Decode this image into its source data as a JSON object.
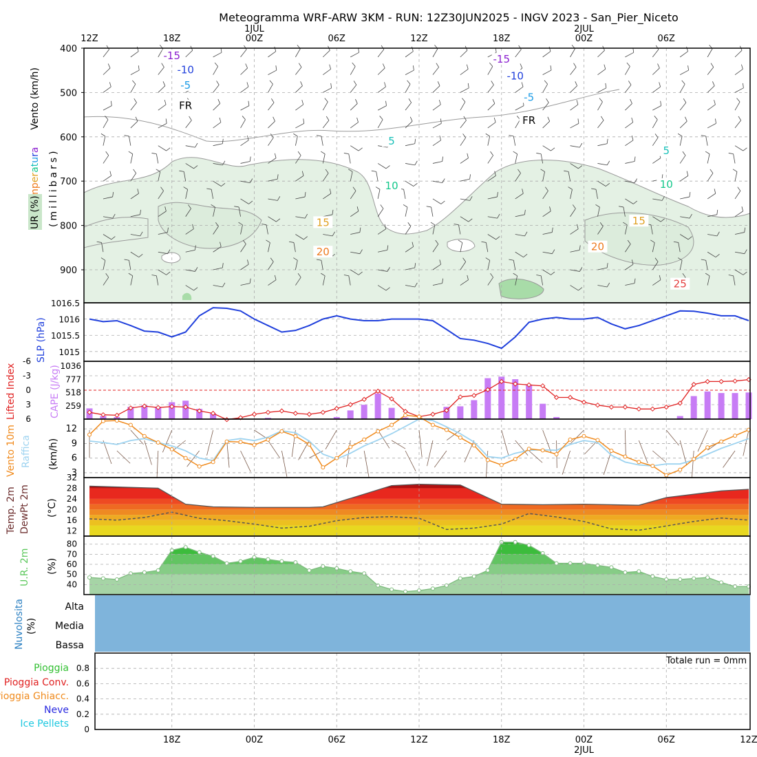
{
  "title": "Meteogramma WRF-ARW 3KM - RUN: 12Z30JUN2025 - INGV 2023 - San_Pier_Niceto",
  "top_time_labels": [
    {
      "label": "12Z",
      "t": 0
    },
    {
      "label": "18Z",
      "t": 6
    },
    {
      "label": "00Z",
      "t": 12,
      "date": "1JUL"
    },
    {
      "label": "06Z",
      "t": 18
    },
    {
      "label": "12Z",
      "t": 24
    },
    {
      "label": "18Z",
      "t": 30
    },
    {
      "label": "00Z",
      "t": 36,
      "date": "2JUL"
    },
    {
      "label": "06Z",
      "t": 42
    }
  ],
  "bottom_time_labels": [
    {
      "label": "18Z",
      "t": 6
    },
    {
      "label": "00Z",
      "t": 12
    },
    {
      "label": "06Z",
      "t": 18
    },
    {
      "label": "12Z",
      "t": 24
    },
    {
      "label": "18Z",
      "t": 30
    },
    {
      "label": "00Z",
      "t": 36,
      "date": "2JUL"
    },
    {
      "label": "06Z",
      "t": 42
    },
    {
      "label": "12Z",
      "t": 48
    }
  ],
  "panel_titles": {
    "wind_label": "Vento (km/h)",
    "temp_label": "Temperatura",
    "ur_label": "UR (%)",
    "pressure_axis": "(millibars)",
    "slp": "SLP (hPa)",
    "lifted": "Lifted Index",
    "cape": "CAPE (J/kg)",
    "wind10": "Vento 10m",
    "gust": "Raffica",
    "wind_units": "(km/h)",
    "temp2m": "Temp. 2m",
    "dew2m": "DewPt 2m",
    "temp_units": "(°C)",
    "rh2m": "U.R. 2m",
    "rh_units": "(%)",
    "cloud": "Nuvolosita",
    "cloud_units": "(%)",
    "cloud_levels": [
      "Alta",
      "Media",
      "Bassa"
    ],
    "precip_legend": [
      "Pioggia",
      "Pioggia Conv.",
      "Pioggia Ghiacc.",
      "Neve",
      "Ice Pellets"
    ],
    "precip_total": "Totale run =  0mm"
  },
  "colors": {
    "accent": "#1f3fdc",
    "cape_bar": "#c77cf5",
    "lifted": "#e02020",
    "wind10": "#f08a1c",
    "gust": "#9dd3f0",
    "rh_fill": "#5cc85c",
    "cloud": "#7fb4db",
    "temp_t15": "#8a1ecf",
    "temp_t10": "#1f3fdc",
    "temp_t5": "#1a9be6",
    "temp_fr": "#000000",
    "temp_p5": "#17c0b8",
    "temp_p10": "#12c78a",
    "temp_p15": "#e0a020",
    "temp_p20": "#ee7a1d",
    "temp_p25": "#e43c3c"
  },
  "chart_data": [
    {
      "type": "line",
      "name": "profile",
      "ylabel": "(millibars)",
      "ylim": [
        400,
        950
      ],
      "yticks": [
        400,
        500,
        600,
        700,
        800,
        900
      ],
      "isotherms": [
        {
          "label": "-15",
          "t": [
            0,
            12,
            24,
            36,
            48
          ],
          "p": [
            416,
            418,
            422,
            428,
            432
          ]
        },
        {
          "label": "-10",
          "t": [
            0,
            12,
            24,
            36,
            48
          ],
          "p": [
            447,
            450,
            455,
            468,
            484
          ]
        },
        {
          "label": "-5",
          "t": [
            0,
            12,
            24,
            36,
            48
          ],
          "p": [
            483,
            485,
            497,
            518,
            532
          ]
        },
        {
          "label": "FR",
          "t": [
            0,
            12,
            24,
            36,
            48
          ],
          "p": [
            530,
            530,
            549,
            570,
            585
          ]
        },
        {
          "label": "5",
          "t": [
            0,
            12,
            24,
            36,
            48
          ],
          "p": [
            600,
            595,
            613,
            620,
            642
          ]
        },
        {
          "label": "10",
          "t": [
            0,
            6,
            12,
            24,
            30,
            36,
            48
          ],
          "p": [
            711,
            720,
            705,
            712,
            715,
            705,
            710
          ]
        },
        {
          "label": "15",
          "t": [
            0,
            12,
            18,
            24,
            30,
            36,
            42,
            48
          ],
          "p": [
            790,
            785,
            795,
            785,
            775,
            790,
            790,
            778
          ]
        },
        {
          "label": "20",
          "t": [
            0,
            6,
            18,
            21,
            24,
            30,
            36,
            42,
            48
          ],
          "p": [
            855,
            837,
            862,
            868,
            846,
            834,
            848,
            850,
            848
          ]
        },
        {
          "label": "25",
          "t": [
            0,
            6,
            12,
            18,
            21,
            24,
            30,
            36,
            42,
            48
          ],
          "p": [
            913,
            930,
            935,
            935,
            920,
            910,
            920,
            935,
            935,
            918
          ]
        }
      ]
    },
    {
      "type": "line",
      "name": "slp",
      "ylabel": "SLP (hPa)",
      "ylim": [
        1014.7,
        1016.5
      ],
      "yticks": [
        1015,
        1015.5,
        1016,
        1016.5
      ],
      "x": [
        0,
        1,
        2,
        3,
        4,
        5,
        6,
        7,
        8,
        9,
        10,
        11,
        12,
        13,
        14,
        15,
        16,
        17,
        18,
        19,
        20,
        21,
        22,
        23,
        24,
        25,
        26,
        27,
        28,
        29,
        30,
        31,
        32,
        33,
        34,
        35,
        36,
        37,
        38,
        39,
        40,
        41,
        42,
        43,
        44,
        45,
        46,
        47,
        48
      ],
      "values": [
        1016,
        1015.92,
        1015.95,
        1015.8,
        1015.63,
        1015.6,
        1015.45,
        1015.6,
        1016.1,
        1016.35,
        1016.33,
        1016.25,
        1016,
        1015.8,
        1015.6,
        1015.65,
        1015.8,
        1016,
        1016.1,
        1016,
        1015.95,
        1015.95,
        1016,
        1016,
        1016,
        1015.95,
        1015.68,
        1015.4,
        1015.35,
        1015.25,
        1015.1,
        1015.45,
        1015.9,
        1016,
        1016.05,
        1016,
        1016,
        1016.05,
        1015.85,
        1015.7,
        1015.8,
        1015.95,
        1016.1,
        1016.25,
        1016.24,
        1016.18,
        1016.1,
        1016.1,
        1015.95
      ]
    },
    {
      "type": "bar",
      "name": "cape_lifted",
      "ylabel": "CAPE (J/kg)",
      "cape_ticks": [
        259,
        518,
        777,
        1036
      ],
      "lifted_ticks": [
        -6,
        -3,
        0,
        3,
        6
      ],
      "cape_max": 1036,
      "x": [
        0,
        1,
        2,
        3,
        4,
        5,
        6,
        7,
        8,
        9,
        10,
        11,
        12,
        13,
        14,
        15,
        16,
        17,
        18,
        19,
        20,
        21,
        22,
        23,
        24,
        25,
        26,
        27,
        28,
        29,
        30,
        31,
        32,
        33,
        34,
        35,
        36,
        37,
        38,
        39,
        40,
        41,
        42,
        43,
        44,
        45,
        46,
        47,
        48
      ],
      "cape": [
        210,
        60,
        40,
        240,
        270,
        240,
        330,
        360,
        200,
        110,
        0,
        0,
        0,
        25,
        0,
        0,
        0,
        0,
        40,
        170,
        280,
        500,
        220,
        30,
        0,
        0,
        240,
        250,
        370,
        800,
        830,
        780,
        670,
        300,
        40,
        0,
        0,
        0,
        0,
        0,
        10,
        0,
        0,
        60,
        450,
        540,
        510,
        510,
        520
      ],
      "lifted": [
        4.6,
        5.1,
        5.2,
        3.7,
        3.3,
        3.6,
        3.4,
        3.5,
        4.3,
        4.8,
        6.1,
        5.7,
        5.0,
        4.6,
        4.3,
        4.8,
        5.0,
        4.6,
        3.8,
        3.0,
        1.9,
        0.2,
        1.8,
        4.4,
        5.5,
        5.0,
        4.2,
        1.4,
        1.1,
        -0.1,
        -1.8,
        -1.3,
        -1.1,
        -0.9,
        1.5,
        1.5,
        2.5,
        3.1,
        3.5,
        3.5,
        3.9,
        3.9,
        3.5,
        2.7,
        -1.2,
        -1.8,
        -1.8,
        -1.9,
        -2.2
      ]
    },
    {
      "type": "line",
      "name": "wind10",
      "ylabel": "(km/h)",
      "ylim": [
        2,
        14
      ],
      "yticks": [
        3,
        6,
        9,
        12
      ],
      "x": [
        0,
        1,
        2,
        3,
        4,
        5,
        6,
        7,
        8,
        9,
        10,
        11,
        12,
        13,
        14,
        15,
        16,
        17,
        18,
        19,
        20,
        21,
        22,
        23,
        24,
        25,
        26,
        27,
        28,
        29,
        30,
        31,
        32,
        33,
        34,
        35,
        36,
        37,
        38,
        39,
        40,
        41,
        42,
        43,
        44,
        45,
        46,
        47,
        48
      ],
      "wind": [
        10.8,
        13.6,
        13.7,
        12.8,
        10.5,
        9.2,
        7.8,
        6.0,
        4.3,
        5.2,
        9.4,
        9.3,
        8.7,
        9.8,
        11.5,
        10.5,
        8.8,
        4.1,
        6.0,
        8.3,
        9.8,
        11.5,
        12.8,
        14.8,
        14.5,
        12.8,
        11.8,
        10.2,
        8.6,
        5.6,
        4.6,
        5.8,
        7.9,
        7.6,
        6.8,
        9.8,
        10.5,
        9.7,
        7.5,
        6.3,
        5.2,
        4.4,
        2.5,
        3.6,
        5.8,
        8.2,
        9.4,
        10.6,
        11.8
      ],
      "gust": [
        9.5,
        9.2,
        8.8,
        9.6,
        10.0,
        9.2,
        8.5,
        7.5,
        6.0,
        5.5,
        9.6,
        10.0,
        9.6,
        10.3,
        11.6,
        11.2,
        9.5,
        6.8,
        5.8,
        7.0,
        8.5,
        9.7,
        11.0,
        12.5,
        14.0,
        13.7,
        12.4,
        11.0,
        9.3,
        6.3,
        6.0,
        7.0,
        7.6,
        7.7,
        7.6,
        8.8,
        9.6,
        9.2,
        6.6,
        5.2,
        4.6,
        4.4,
        4.8,
        4.8,
        5.6,
        6.8,
        8.0,
        9.0,
        10.0
      ]
    },
    {
      "type": "area",
      "name": "temp2m",
      "ylabel": "(°C)",
      "ylim": [
        10,
        32
      ],
      "yticks": [
        12,
        16,
        20,
        24,
        28,
        32
      ],
      "x": [
        0,
        5,
        7,
        9,
        12,
        16,
        17,
        22,
        24,
        27,
        30,
        33,
        36,
        38,
        40,
        42,
        46,
        48
      ],
      "temperature": [
        28.8,
        28.0,
        22.0,
        21.0,
        20.8,
        20.8,
        21.0,
        29.0,
        29.5,
        29.2,
        22.0,
        21.8,
        22.0,
        21.8,
        21.6,
        24.5,
        27.0,
        27.6
      ],
      "dewpoint_x": [
        0,
        2,
        4,
        6,
        8,
        10,
        12,
        14,
        16,
        18,
        20,
        22,
        24,
        26,
        28,
        30,
        32,
        34,
        36,
        38,
        40,
        42,
        44,
        46,
        48
      ],
      "dewpoint": [
        16.5,
        16,
        17,
        19,
        16.7,
        15.8,
        14.5,
        13,
        13.7,
        15.8,
        17,
        17.3,
        16.7,
        12.5,
        13,
        14.5,
        18.5,
        17.2,
        15.5,
        12.7,
        12.2,
        13.8,
        15.5,
        16.8,
        16
      ]
    },
    {
      "type": "area",
      "name": "rh2m",
      "ylabel": "(%)",
      "ylim": [
        30,
        88
      ],
      "yticks": [
        40,
        50,
        60,
        70,
        80
      ],
      "x": [
        0,
        1,
        2,
        3,
        4,
        5,
        6,
        7,
        8,
        9,
        10,
        11,
        12,
        13,
        14,
        15,
        16,
        17,
        18,
        19,
        20,
        21,
        22,
        23,
        24,
        25,
        26,
        27,
        28,
        29,
        30,
        31,
        32,
        33,
        34,
        35,
        36,
        37,
        38,
        39,
        40,
        41,
        42,
        43,
        44,
        45,
        46,
        47,
        48
      ],
      "values": [
        47,
        46,
        45,
        51,
        52,
        54,
        74,
        77,
        72,
        68,
        61,
        63,
        67,
        65,
        63,
        62,
        54,
        58,
        56,
        53,
        51,
        39,
        35,
        33,
        34,
        36,
        39,
        46,
        48,
        54,
        82,
        82,
        79,
        71,
        61,
        61,
        61,
        59,
        57,
        52,
        53,
        48,
        45,
        45,
        46,
        47,
        42,
        38,
        38
      ]
    },
    {
      "type": "area",
      "name": "cloud",
      "categories": [
        "Alta",
        "Media",
        "Bassa"
      ],
      "values": [
        100,
        100,
        100
      ]
    },
    {
      "type": "bar",
      "name": "precip",
      "ylim": [
        0,
        1
      ],
      "yticks": [
        0,
        0.2,
        0.4,
        0.6,
        0.8
      ],
      "values": []
    }
  ]
}
